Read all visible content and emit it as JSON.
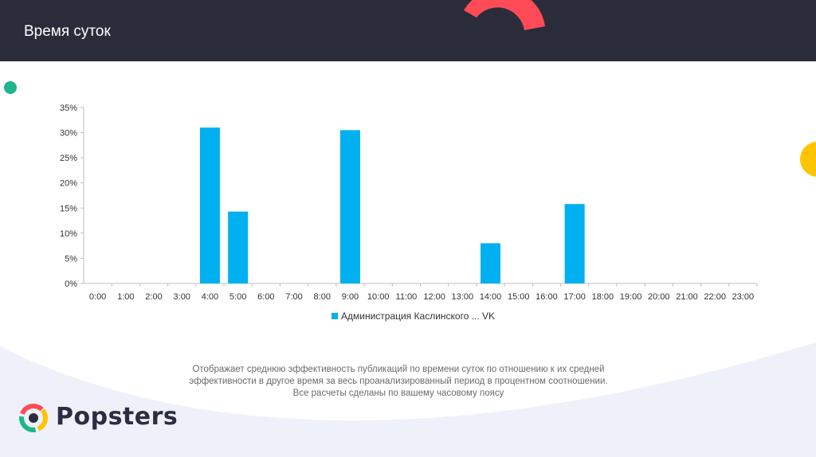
{
  "header": {
    "title": "Время суток"
  },
  "chart_data": {
    "type": "bar",
    "categories": [
      "0:00",
      "1:00",
      "2:00",
      "3:00",
      "4:00",
      "5:00",
      "6:00",
      "7:00",
      "8:00",
      "9:00",
      "10:00",
      "11:00",
      "12:00",
      "13:00",
      "14:00",
      "15:00",
      "16:00",
      "17:00",
      "18:00",
      "19:00",
      "20:00",
      "21:00",
      "22:00",
      "23:00"
    ],
    "series": [
      {
        "name": "Администрация Каслинского ... VK",
        "values": [
          0,
          0,
          0,
          0,
          31,
          14.3,
          0,
          0,
          0,
          30.5,
          0,
          0,
          0,
          0,
          8,
          0,
          0,
          15.8,
          0,
          0,
          0,
          0,
          0,
          0
        ]
      }
    ],
    "yticks": [
      "0%",
      "5%",
      "10%",
      "15%",
      "20%",
      "25%",
      "30%",
      "35%"
    ],
    "ylim": [
      0,
      35
    ],
    "bar_color": "#00b0f0",
    "legend_position": "bottom",
    "grid": false
  },
  "description": {
    "line1": "Отображает среднюю эффективность публикаций по времени суток по отношению к их средней",
    "line2": "эффективности в другое время за весь проанализированный период в процентном соотношении.",
    "line3": "Все расчеты сделаны по вашему часовому поясу"
  },
  "brand": {
    "name": "Popsters"
  },
  "colors": {
    "header_bg": "#2b2c3a",
    "accent_red": "#ff4b55",
    "accent_yellow": "#ffc400",
    "accent_green": "#1db58a"
  }
}
